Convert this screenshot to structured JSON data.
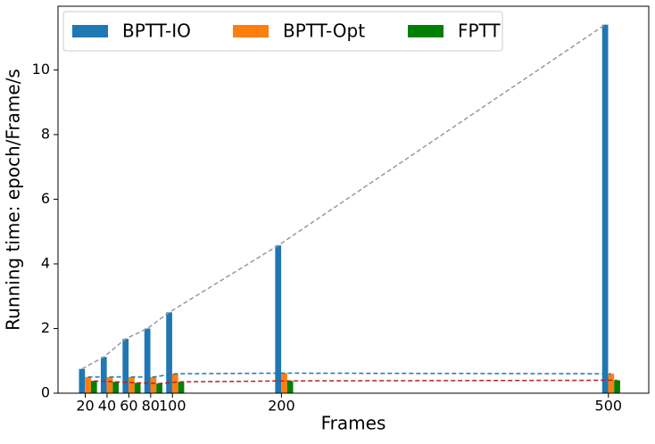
{
  "chart_data": {
    "type": "bar",
    "x_label": "Frames",
    "y_label": "Running time: epoch/Frame/s",
    "x": [
      20,
      40,
      60,
      80,
      100,
      200,
      500
    ],
    "series": [
      {
        "name": "BPTT-IO",
        "color": "#1f77b4",
        "line_color": "#999999",
        "values": [
          0.75,
          1.12,
          1.68,
          2.0,
          2.5,
          4.57,
          11.4
        ]
      },
      {
        "name": "BPTT-Opt",
        "color": "#ff7f0e",
        "line_color": "#1f77b4",
        "values": [
          0.5,
          0.5,
          0.5,
          0.5,
          0.6,
          0.62,
          0.6
        ]
      },
      {
        "name": "FPTT",
        "color": "#008000",
        "line_color": "#b22222",
        "values": [
          0.38,
          0.35,
          0.32,
          0.3,
          0.35,
          0.38,
          0.4
        ]
      }
    ],
    "xlim": [
      -5,
      537
    ],
    "xticks": [
      20,
      40,
      60,
      80,
      100,
      200,
      500
    ],
    "ylim": [
      0,
      11.97
    ],
    "yticks": [
      0,
      2,
      4,
      6,
      8,
      10
    ],
    "legend": "upper left"
  }
}
